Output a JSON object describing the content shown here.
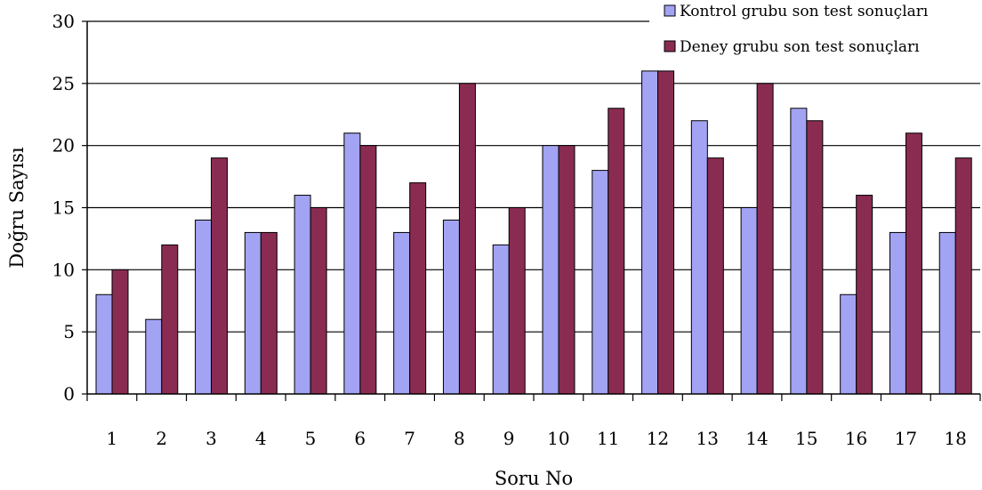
{
  "chart_data": {
    "type": "bar",
    "categories": [
      "1",
      "2",
      "3",
      "4",
      "5",
      "6",
      "7",
      "8",
      "9",
      "10",
      "11",
      "12",
      "13",
      "14",
      "15",
      "16",
      "17",
      "18"
    ],
    "series": [
      {
        "name": "Kontrol grubu son test sonuçları",
        "color": "#a3a3f3",
        "values": [
          8,
          6,
          14,
          13,
          16,
          21,
          13,
          14,
          12,
          20,
          18,
          26,
          22,
          15,
          23,
          8,
          13,
          13
        ]
      },
      {
        "name": "Deney grubu son test sonuçları",
        "color": "#8a2c52",
        "values": [
          10,
          12,
          19,
          13,
          15,
          20,
          17,
          25,
          15,
          20,
          23,
          26,
          19,
          25,
          22,
          16,
          21,
          19
        ]
      }
    ],
    "yticks": [
      0,
      5,
      10,
      15,
      20,
      25,
      30
    ],
    "ylim": [
      0,
      30
    ],
    "xlabel": "Soru No",
    "ylabel": "Doğru Sayısı",
    "grid": "horizontal",
    "legend_position": "top-right"
  }
}
